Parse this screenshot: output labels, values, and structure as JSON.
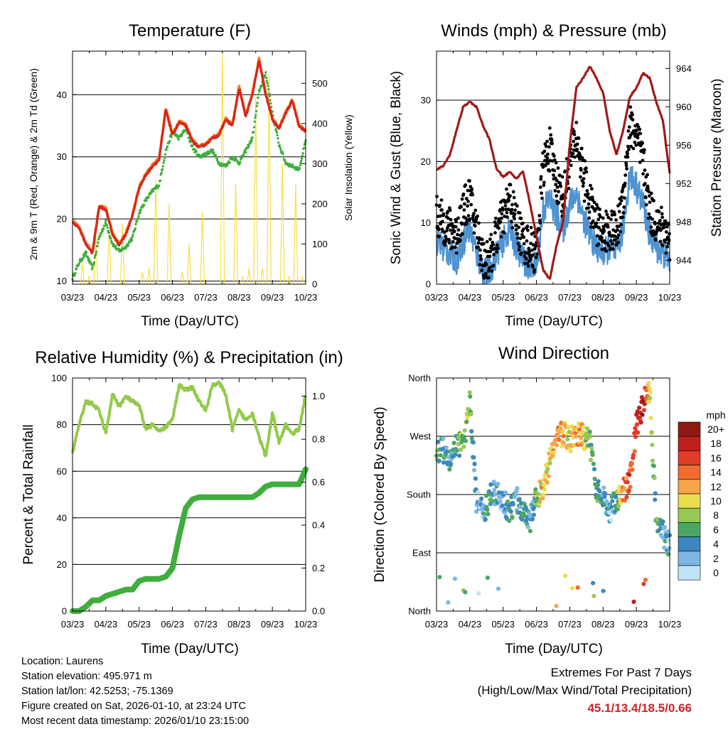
{
  "colors": {
    "temp2m": "#d8261b",
    "temp9m": "#f47b20",
    "dewpoint": "#3fae3c",
    "insolation": "#f7dc3c",
    "gust": "#000000",
    "wind": "#4f93d1",
    "pressure": "#9e1b1b",
    "rh": "#93ca4c",
    "precip": "#3fae3c"
  },
  "time_ticks": [
    "03/23",
    "04/23",
    "05/23",
    "06/23",
    "07/23",
    "08/23",
    "09/23",
    "10/23"
  ],
  "chart_data": [
    {
      "id": "temperature",
      "type": "line",
      "title": "Temperature (F)",
      "xlabel": "Time (Day/UTC)",
      "ylabel": "2m & 9m T (Red, Orange) & 2m Td (Green)",
      "y2label": "Solar Insolation (Yellow)",
      "ylim": [
        9.5,
        47
      ],
      "yticks": [
        10,
        20,
        30,
        40
      ],
      "y2lim": [
        0,
        580
      ],
      "y2ticks": [
        0,
        100,
        200,
        300,
        400,
        500
      ],
      "x": [
        0,
        0.2,
        0.4,
        0.6,
        0.8,
        1,
        1.2,
        1.4,
        1.6,
        1.8,
        2,
        2.2,
        2.4,
        2.6,
        2.8,
        3,
        3.2,
        3.4,
        3.6,
        3.8,
        4,
        4.2,
        4.4,
        4.6,
        4.8,
        5,
        5.2,
        5.4,
        5.6,
        5.8,
        6,
        6.2,
        6.4,
        6.6,
        6.8,
        7
      ],
      "series": [
        {
          "name": "2m T",
          "values": [
            19.5,
            18.5,
            16,
            14.5,
            22,
            21.5,
            17.5,
            15.8,
            17.5,
            20.5,
            25,
            27,
            28.5,
            29.5,
            37.5,
            33.5,
            35.5,
            35,
            32.5,
            31.5,
            32,
            33,
            33.5,
            36,
            35,
            41,
            36.5,
            40,
            45.5,
            40,
            36,
            34.5,
            37,
            39,
            35,
            34
          ]
        },
        {
          "name": "9m T",
          "values": [
            19.7,
            18.7,
            16.2,
            14.7,
            22.2,
            21.7,
            17.7,
            16,
            17.7,
            20.7,
            25.2,
            27.2,
            28.7,
            29.7,
            37.8,
            33.7,
            35.7,
            35.2,
            32.7,
            31.7,
            32.2,
            33.2,
            33.7,
            36.2,
            35.2,
            41.3,
            36.7,
            40.2,
            45.8,
            40.2,
            36.2,
            34.7,
            37.2,
            39.2,
            35.2,
            34.2
          ]
        },
        {
          "name": "2m Td",
          "values": [
            10.5,
            13,
            14.5,
            12,
            17,
            19.5,
            16,
            14.8,
            15.5,
            17,
            21,
            23,
            24.5,
            25.5,
            31,
            34,
            33,
            34.5,
            31.5,
            30,
            30.5,
            31,
            29,
            28.5,
            30,
            29,
            31,
            33,
            40.5,
            43.5,
            37,
            32,
            29,
            28.5,
            28,
            32.5
          ]
        },
        {
          "name": "Solar Insolation",
          "axis": "y2",
          "values": [
            0,
            50,
            20,
            120,
            5,
            140,
            0,
            150,
            0,
            10,
            30,
            40,
            260,
            0,
            200,
            0,
            30,
            100,
            5,
            180,
            10,
            0,
            580,
            0,
            250,
            20,
            40,
            470,
            40,
            520,
            10,
            300,
            20,
            250,
            20,
            0
          ]
        }
      ]
    },
    {
      "id": "winds",
      "type": "line",
      "title": "Winds (mph) & Pressure (mb)",
      "xlabel": "Time (Day/UTC)",
      "ylabel": "Sonic Wind & Gust (Blue, Black)",
      "y2label": "Station Pressure (Maroon)",
      "ylim": [
        0,
        38
      ],
      "yticks": [
        0,
        10,
        20,
        30
      ],
      "y2lim": [
        941.5,
        965.8
      ],
      "y2ticks": [
        944,
        948,
        952,
        956,
        960,
        964
      ],
      "x": [
        0,
        0.2,
        0.4,
        0.6,
        0.8,
        1,
        1.2,
        1.4,
        1.6,
        1.8,
        2,
        2.2,
        2.4,
        2.6,
        2.8,
        3,
        3.2,
        3.4,
        3.6,
        3.8,
        4,
        4.2,
        4.4,
        4.6,
        4.8,
        5,
        5.2,
        5.4,
        5.6,
        5.8,
        6,
        6.2,
        6.4,
        6.6,
        6.8,
        7
      ],
      "series": [
        {
          "name": "Gust",
          "values": [
            11,
            10,
            9,
            8,
            12,
            14,
            9,
            4,
            4,
            8,
            11,
            14,
            10,
            7,
            6,
            5,
            19,
            22,
            17,
            14,
            20,
            24,
            18,
            13,
            10,
            8,
            9,
            8,
            14,
            26,
            24,
            20,
            12,
            10,
            9,
            7
          ]
        },
        {
          "name": "Sonic Wind",
          "values": [
            7,
            6,
            5,
            4,
            7,
            9,
            5,
            2,
            2,
            5,
            7,
            9,
            6,
            4,
            3,
            3,
            12,
            14,
            11,
            9,
            13,
            15,
            11,
            8,
            6,
            5,
            6,
            5,
            9,
            18,
            16,
            13,
            8,
            6,
            5,
            4
          ]
        },
        {
          "name": "Station Pressure",
          "axis": "y2",
          "values": [
            953.5,
            953.8,
            955,
            957.5,
            960,
            960.5,
            960,
            958,
            956.5,
            953.5,
            952.7,
            953.2,
            952.5,
            953.3,
            950,
            946.5,
            943,
            942,
            945.5,
            948,
            956,
            962,
            963,
            964.2,
            963,
            961.5,
            957.5,
            955,
            957.5,
            961,
            962,
            963.5,
            963,
            960.5,
            958.5,
            953
          ]
        }
      ]
    },
    {
      "id": "humidity",
      "type": "line",
      "title": "Relative Humidity (%) & Precipitation (in)",
      "xlabel": "Time (Day/UTC)",
      "ylabel": "Percent & Total Rainfall",
      "ylim": [
        0,
        100
      ],
      "yticks": [
        0,
        20,
        40,
        60,
        80,
        100
      ],
      "y2lim": [
        0,
        1.085
      ],
      "y2ticks": [
        0.0,
        0.2,
        0.4,
        0.6,
        0.8,
        1.0
      ],
      "x": [
        0,
        0.2,
        0.4,
        0.6,
        0.8,
        1,
        1.2,
        1.4,
        1.6,
        1.8,
        2,
        2.2,
        2.4,
        2.6,
        2.8,
        3,
        3.2,
        3.4,
        3.6,
        3.8,
        4,
        4.2,
        4.4,
        4.6,
        4.8,
        5,
        5.2,
        5.4,
        5.6,
        5.8,
        6,
        6.2,
        6.4,
        6.6,
        6.8,
        7
      ],
      "series": [
        {
          "name": "Relative Humidity",
          "values": [
            68,
            80,
            90,
            89,
            86,
            76,
            93,
            88,
            92,
            90,
            88,
            78,
            80,
            77,
            79,
            82,
            97,
            95,
            96,
            90,
            86,
            97,
            98,
            93,
            78,
            86,
            82,
            85,
            75,
            66,
            85,
            72,
            80,
            76,
            78,
            93
          ]
        },
        {
          "name": "Total Precipitation",
          "axis": "y2",
          "values": [
            0,
            0,
            0.02,
            0.05,
            0.05,
            0.07,
            0.08,
            0.09,
            0.1,
            0.1,
            0.14,
            0.15,
            0.15,
            0.15,
            0.16,
            0.2,
            0.35,
            0.48,
            0.52,
            0.53,
            0.53,
            0.53,
            0.53,
            0.53,
            0.53,
            0.53,
            0.53,
            0.53,
            0.55,
            0.58,
            0.59,
            0.59,
            0.59,
            0.59,
            0.59,
            0.66
          ]
        }
      ]
    },
    {
      "id": "direction",
      "type": "scatter",
      "title": "Wind Direction",
      "xlabel": "Time (Day/UTC)",
      "ylabel": "Direction (Colored By Speed)",
      "ylim": [
        0,
        360
      ],
      "ytick_values": [
        0,
        90,
        180,
        270,
        360
      ],
      "ytick_labels": [
        "North",
        "East",
        "South",
        "West",
        "North"
      ],
      "legend_title": "mph",
      "legend": [
        {
          "label": "20+",
          "color": "#8e1914"
        },
        {
          "label": "18",
          "color": "#c0201c"
        },
        {
          "label": "16",
          "color": "#e13c2a"
        },
        {
          "label": "14",
          "color": "#f26b30"
        },
        {
          "label": "12",
          "color": "#f9a54a"
        },
        {
          "label": "10",
          "color": "#e9df4e"
        },
        {
          "label": "8",
          "color": "#97c854"
        },
        {
          "label": "6",
          "color": "#4ba664"
        },
        {
          "label": "4",
          "color": "#3c87c0"
        },
        {
          "label": "2",
          "color": "#7db7e4"
        },
        {
          "label": "0",
          "color": "#bfe4f5"
        }
      ],
      "x": [
        0,
        0.2,
        0.4,
        0.6,
        0.8,
        1,
        1.2,
        1.4,
        1.6,
        1.8,
        2,
        2.2,
        2.4,
        2.6,
        2.8,
        3,
        3.2,
        3.4,
        3.6,
        3.8,
        4,
        4.2,
        4.4,
        4.6,
        4.8,
        5,
        5.2,
        5.4,
        5.6,
        5.8,
        6,
        6.2,
        6.4,
        6.6,
        6.8,
        7
      ],
      "series": [
        {
          "name": "Direction",
          "values": [
            248,
            250,
            230,
            260,
            255,
            320,
            170,
            150,
            175,
            185,
            170,
            155,
            175,
            150,
            135,
            175,
            190,
            230,
            265,
            275,
            265,
            275,
            270,
            260,
            190,
            175,
            155,
            170,
            185,
            200,
            285,
            320,
            345,
            130,
            120,
            100
          ]
        },
        {
          "name": "Speed",
          "values": [
            6,
            5,
            4,
            4,
            8,
            7,
            2,
            3,
            5,
            4,
            3,
            5,
            4,
            6,
            3,
            8,
            12,
            9,
            14,
            12,
            10,
            13,
            11,
            6,
            5,
            4,
            3,
            5,
            14,
            15,
            17,
            19,
            9,
            5,
            4,
            3
          ]
        }
      ]
    }
  ],
  "info": {
    "location": "Location: Laurens",
    "elevation": "Station elevation: 495.971 m",
    "latlon": "Station lat/lon: 42.5253; -75.1369",
    "created": "Figure created on Sat, 2026-01-10, at 23:24 UTC",
    "recent": "Most recent data timestamp: 2026/01/10 23:15:00"
  },
  "extremes": {
    "title": "Extremes For Past 7 Days",
    "subtitle": "(High/Low/Max Wind/Total Precipitation)",
    "values": "45.1/13.4/18.5/0.66"
  }
}
